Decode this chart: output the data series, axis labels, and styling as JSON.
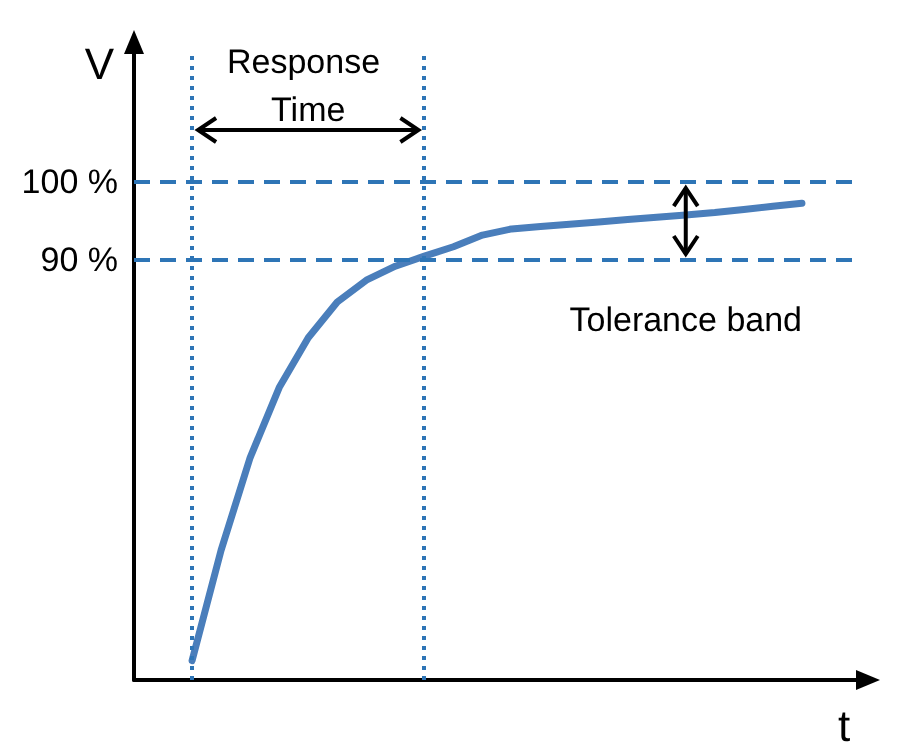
{
  "chart_data": {
    "type": "line",
    "xlabel": "t",
    "ylabel": "V",
    "categories": [
      null,
      null,
      null,
      null,
      null,
      null,
      null,
      null,
      null,
      null,
      null,
      null,
      null,
      null,
      null,
      null,
      null,
      null,
      null,
      null,
      null,
      null,
      null,
      null,
      null,
      null
    ],
    "series": [
      {
        "color": "#4a7ebb",
        "values": [
          null,
          null,
          38.5,
          52.7,
          64.6,
          73.6,
          80.0,
          84.6,
          87.4,
          89.2,
          90.5,
          91.7,
          93.2,
          94.0,
          94.3,
          94.6,
          94.9,
          95.2,
          95.5,
          95.8,
          96.1,
          96.5,
          96.9,
          97.3,
          null,
          null
        ]
      }
    ],
    "ylim": [
      36,
      117
    ],
    "yticks": [
      {
        "value": 90,
        "label": "90 %"
      },
      {
        "value": 100,
        "label": "100 %"
      }
    ],
    "tick_labels": "y",
    "grid": false,
    "marker": "none",
    "line_style": "solid",
    "ref_lines": [
      {
        "axis": "y",
        "value": 100,
        "color": "#2e75b6",
        "line_style": "dashed"
      },
      {
        "axis": "y",
        "value": 90,
        "color": "#2e75b6",
        "line_style": "dashed"
      }
    ],
    "annotations": [
      "Response Time",
      "Tolerance band"
    ]
  }
}
